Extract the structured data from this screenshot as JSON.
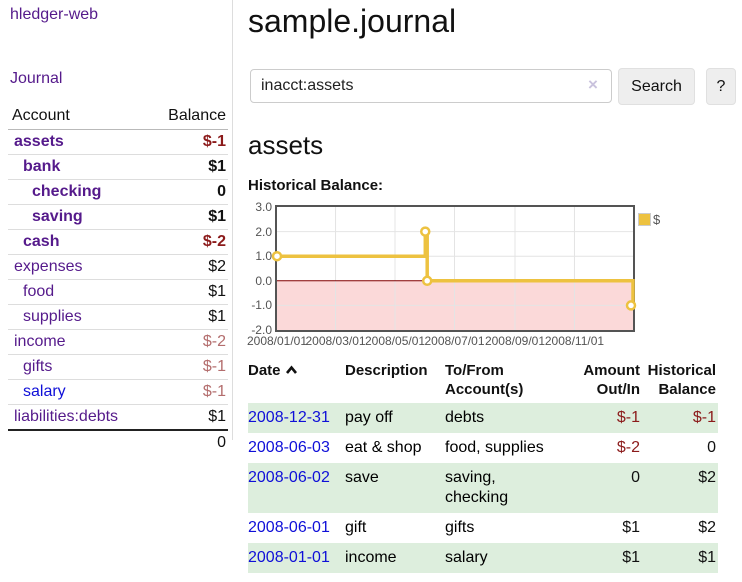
{
  "colors": {
    "link_purple": "#551a8b",
    "link_blue": "#0f0fd8",
    "negative_strong": "#8b1a1a",
    "negative_soft": "#b36d6d",
    "row_stripe_green": "#ddeedd",
    "chart_line_gold": "#edc240",
    "chart_negative_region": "#fbd9d9",
    "chart_zero_line": "#800000",
    "chart_border": "#545454",
    "chart_gridline": "#e4e4e4",
    "button_bg": "#eeeeee"
  },
  "sidebar": {
    "app_title": "hledger-web",
    "journal_link": "Journal",
    "accounts_table": {
      "headers": {
        "account": "Account",
        "balance": "Balance"
      },
      "rows": [
        {
          "name": "assets",
          "depth": 0,
          "bold": true,
          "balance": "$-1",
          "balance_style": "neg-strong",
          "link_color": "purple"
        },
        {
          "name": "bank",
          "depth": 1,
          "bold": true,
          "balance": "$1",
          "balance_style": "val",
          "link_color": "purple"
        },
        {
          "name": "checking",
          "depth": 2,
          "bold": true,
          "balance": "0",
          "balance_style": "val",
          "link_color": "purple"
        },
        {
          "name": "saving",
          "depth": 2,
          "bold": true,
          "balance": "$1",
          "balance_style": "val",
          "link_color": "purple"
        },
        {
          "name": "cash",
          "depth": 1,
          "bold": true,
          "balance": "$-2",
          "balance_style": "neg-strong",
          "link_color": "purple"
        },
        {
          "name": "expenses",
          "depth": 0,
          "bold": false,
          "balance": "$2",
          "balance_style": "val",
          "link_color": "purple"
        },
        {
          "name": "food",
          "depth": 1,
          "bold": false,
          "balance": "$1",
          "balance_style": "val",
          "link_color": "purple"
        },
        {
          "name": "supplies",
          "depth": 1,
          "bold": false,
          "balance": "$1",
          "balance_style": "val",
          "link_color": "purple"
        },
        {
          "name": "income",
          "depth": 0,
          "bold": false,
          "balance": "$-2",
          "balance_style": "neg-soft",
          "link_color": "purple"
        },
        {
          "name": "gifts",
          "depth": 1,
          "bold": false,
          "balance": "$-1",
          "balance_style": "neg-soft",
          "link_color": "purple"
        },
        {
          "name": "salary",
          "depth": 1,
          "bold": false,
          "balance": "$-1",
          "balance_style": "neg-soft",
          "link_color": "blue"
        },
        {
          "name": "liabilities:debts",
          "depth": 0,
          "bold": false,
          "balance": "$1",
          "balance_style": "val",
          "link_color": "purple"
        }
      ],
      "total": "0"
    }
  },
  "header": {
    "title": "sample.journal"
  },
  "search": {
    "query": "inacct:assets",
    "clear_icon": "×",
    "search_button_label": "Search",
    "help_button_label": "?"
  },
  "main": {
    "account_heading": "assets",
    "chart_label": "Historical Balance:"
  },
  "chart_data": {
    "type": "line",
    "step": true,
    "title": "Historical Balance",
    "series": [
      {
        "name": "$",
        "color": "#edc240",
        "points": [
          [
            "2008/01/01",
            1
          ],
          [
            "2008/06/01",
            2
          ],
          [
            "2008/06/03",
            0
          ],
          [
            "2008/12/31",
            -1
          ]
        ]
      }
    ],
    "x_ticks": [
      "2008/01/01",
      "2008/03/01",
      "2008/05/01",
      "2008/07/01",
      "2008/09/01",
      "2008/11/01"
    ],
    "y_ticks": [
      3.0,
      2.0,
      1.0,
      0.0,
      -1.0,
      -2.0
    ],
    "y_tick_labels": [
      "3.0",
      "2.0",
      "1.0",
      "0.0",
      "-1.0",
      "-2.0"
    ],
    "ylim": [
      -2,
      3
    ],
    "x_start_date": "2008/01/01",
    "x_range_days": 365,
    "grid": true,
    "legend": {
      "label": "$",
      "position": "top-right-outside"
    }
  },
  "register": {
    "headers": {
      "date": "Date",
      "description": "Description",
      "accounts": "To/From Account(s)",
      "amount": "Amount Out/In",
      "balance": "Historical Balance"
    },
    "sort_column": "date",
    "sort_direction": "ascending",
    "rows": [
      {
        "date": "2008-12-31",
        "description": "pay off",
        "accounts": "debts",
        "amount": "$-1",
        "amount_negative": true,
        "balance": "$-1",
        "balance_negative": true
      },
      {
        "date": "2008-06-03",
        "description": "eat & shop",
        "accounts": "food, supplies",
        "amount": "$-2",
        "amount_negative": true,
        "balance": "0",
        "balance_negative": false
      },
      {
        "date": "2008-06-02",
        "description": "save",
        "accounts": "saving, checking",
        "amount": "0",
        "amount_negative": false,
        "balance": "$2",
        "balance_negative": false
      },
      {
        "date": "2008-06-01",
        "description": "gift",
        "accounts": "gifts",
        "amount": "$1",
        "amount_negative": false,
        "balance": "$2",
        "balance_negative": false
      },
      {
        "date": "2008-01-01",
        "description": "income",
        "accounts": "salary",
        "amount": "$1",
        "amount_negative": false,
        "balance": "$1",
        "balance_negative": false
      }
    ]
  }
}
